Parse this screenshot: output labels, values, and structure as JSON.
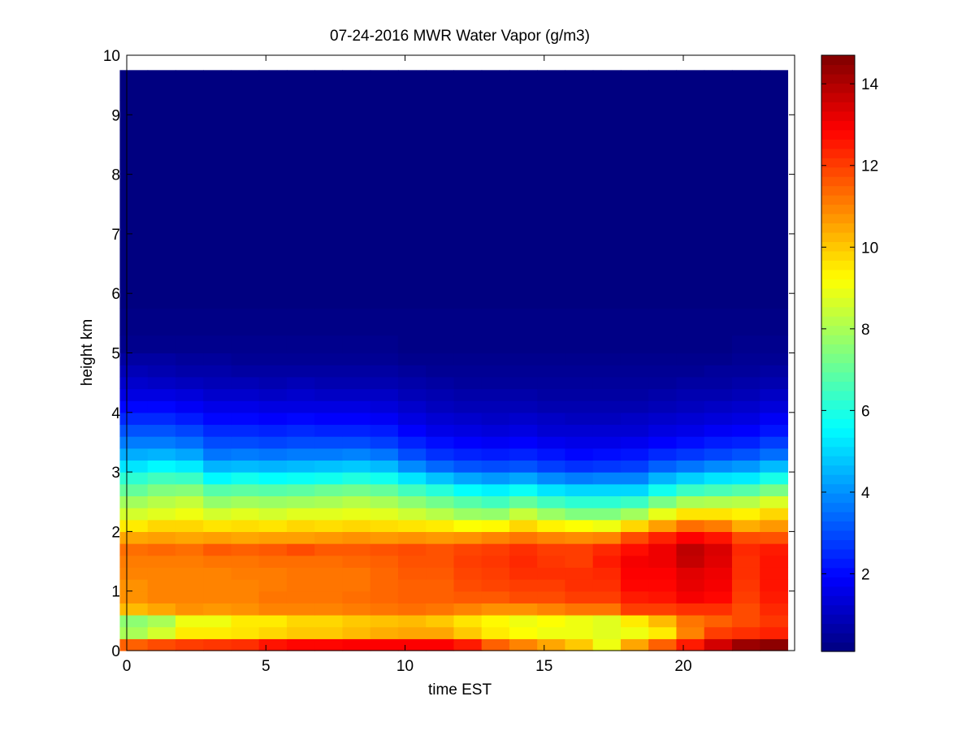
{
  "chart_data": {
    "type": "heatmap",
    "title": "07-24-2016 MWR Water Vapor (g/m3)",
    "xlabel": "time EST",
    "ylabel": "height km",
    "xlim": [
      0,
      24
    ],
    "ylim": [
      0,
      10
    ],
    "x_ticks": [
      "0",
      "5",
      "10",
      "15",
      "20"
    ],
    "y_ticks": [
      "0",
      "1",
      "2",
      "3",
      "4",
      "5",
      "6",
      "7",
      "8",
      "9",
      "10"
    ],
    "colorbar": {
      "colormap": "jet",
      "range": [
        0.1,
        14.7
      ],
      "ticks": [
        "2",
        "4",
        "6",
        "8",
        "10",
        "12",
        "14"
      ]
    },
    "x": [
      0.25,
      1.25,
      2.25,
      3.25,
      4.25,
      5.25,
      6.25,
      7.25,
      8.25,
      9.25,
      10.25,
      11.25,
      12.25,
      13.25,
      14.25,
      15.25,
      16.25,
      17.25,
      18.25,
      19.25,
      20.25,
      21.25,
      22.25,
      23.25
    ],
    "y": [
      0.1,
      0.3,
      0.5,
      0.7,
      0.9,
      1.1,
      1.3,
      1.5,
      1.7,
      1.9,
      2.1,
      2.3,
      2.5,
      2.7,
      2.9,
      3.1,
      3.3,
      3.5,
      3.7,
      3.9,
      4.1,
      4.3,
      4.5,
      4.7,
      4.9,
      5.1,
      5.5,
      6.0,
      6.5,
      7.0,
      7.5,
      8.0,
      8.5,
      9.0,
      9.5
    ],
    "values": [
      [
        11.5,
        11.8,
        12,
        12.1,
        12.2,
        12.6,
        12.8,
        12.8,
        12.9,
        12.9,
        12.9,
        12.9,
        12.5,
        11.5,
        11,
        10.5,
        10,
        9,
        10.5,
        11.5,
        12.5,
        13.5,
        14.3,
        14.5
      ],
      [
        8,
        8.6,
        9.5,
        9.5,
        9.6,
        9.8,
        10,
        10,
        10.2,
        10.4,
        10.5,
        10.5,
        10,
        9.5,
        9.2,
        9,
        9,
        8.8,
        9,
        9.5,
        11,
        12,
        12.2,
        12.4
      ],
      [
        7.6,
        8,
        9,
        9,
        9.5,
        9.5,
        9.8,
        9.8,
        10,
        10.1,
        10.2,
        10,
        9.6,
        9.3,
        9,
        9.2,
        9,
        8.8,
        9.5,
        10.2,
        11.2,
        11.5,
        11.8,
        12.1
      ],
      [
        10.2,
        10.5,
        10.8,
        10.7,
        10.8,
        11,
        11,
        11,
        11.1,
        11.2,
        11.3,
        11.2,
        11,
        10.8,
        10.8,
        11,
        11.2,
        11.2,
        12,
        12,
        12.2,
        12.2,
        11.8,
        12.3
      ],
      [
        10.8,
        11,
        11,
        11,
        11,
        11.2,
        11.2,
        11.2,
        11.3,
        11.4,
        11.5,
        11.5,
        11.6,
        11.6,
        11.8,
        11.8,
        12,
        12,
        12.5,
        12.6,
        13,
        12.8,
        12,
        12.5
      ],
      [
        10.8,
        11,
        11,
        11,
        11,
        11.1,
        11.2,
        11.2,
        11.2,
        11.4,
        11.5,
        11.5,
        11.8,
        11.9,
        12,
        12,
        12.2,
        12.2,
        12.8,
        12.8,
        13.2,
        13,
        12.1,
        12.6
      ],
      [
        11,
        11,
        11,
        11,
        11.1,
        11.1,
        11.2,
        11.2,
        11.2,
        11.4,
        11.6,
        11.6,
        11.9,
        12,
        12.2,
        12.2,
        12.2,
        12.3,
        12.9,
        12.9,
        13.3,
        13.1,
        12.2,
        12.6
      ],
      [
        11.1,
        11.1,
        11.1,
        11.2,
        11.2,
        11.3,
        11.3,
        11.3,
        11.4,
        11.5,
        11.7,
        11.7,
        12,
        12.1,
        12.3,
        12.1,
        12,
        12.5,
        13,
        13.1,
        13.7,
        13.3,
        12.2,
        12.6
      ],
      [
        11.3,
        11.4,
        11.3,
        11.6,
        11.5,
        11.6,
        11.8,
        11.6,
        11.6,
        11.7,
        11.8,
        11.7,
        11.9,
        12,
        12.2,
        12,
        12,
        12.3,
        12.7,
        13.1,
        13.8,
        13.4,
        12.3,
        12.5
      ],
      [
        10.5,
        10.6,
        10.5,
        10.6,
        10.5,
        10.6,
        10.6,
        10.7,
        10.8,
        10.7,
        10.8,
        10.7,
        10.8,
        11,
        11.2,
        11,
        10.9,
        11,
        11.8,
        12.4,
        12.9,
        12.6,
        11.8,
        11.7
      ],
      [
        9.5,
        9.8,
        9.8,
        9.6,
        9.7,
        9.6,
        9.8,
        9.7,
        9.8,
        9.7,
        9.6,
        9.5,
        9.2,
        9.3,
        9.8,
        9.4,
        9.2,
        9,
        9.8,
        10.6,
        11.3,
        11.1,
        10.4,
        10.7
      ],
      [
        8.6,
        8.8,
        9,
        8.6,
        8.8,
        8.6,
        8.8,
        8.8,
        8.9,
        8.8,
        8.5,
        8.2,
        7.8,
        7.7,
        8.4,
        7.8,
        7.4,
        7.4,
        7.9,
        8.9,
        9.6,
        9.6,
        9.4,
        9.8
      ],
      [
        7.9,
        8.2,
        8.4,
        7.7,
        7.9,
        7.8,
        7.9,
        8,
        8.2,
        8,
        7.6,
        7.2,
        6.8,
        6.5,
        7,
        6.5,
        6.2,
        6.2,
        6.4,
        7.3,
        8,
        8.1,
        8.2,
        8.7
      ],
      [
        7,
        7.4,
        7.5,
        6.8,
        6.9,
        6.8,
        6.9,
        7.1,
        7.2,
        7,
        6.5,
        6.1,
        5.6,
        5.4,
        5.7,
        5.2,
        5,
        5,
        5,
        5.8,
        6.4,
        6.6,
        6.8,
        7.3
      ],
      [
        6.2,
        6.5,
        6.4,
        5.5,
        5.8,
        5.6,
        5.7,
        5.8,
        6,
        5.8,
        5.2,
        4.7,
        4.3,
        4.1,
        4.3,
        3.9,
        3.7,
        3.8,
        3.8,
        4.5,
        4.9,
        5.2,
        5.3,
        5.9
      ],
      [
        5.2,
        5.5,
        5.3,
        4.5,
        4.6,
        4.5,
        4.6,
        4.7,
        4.8,
        4.6,
        3.9,
        3.4,
        3.1,
        3,
        3.1,
        2.8,
        2.6,
        2.7,
        2.8,
        3.3,
        3.6,
        3.9,
        4.1,
        4.6
      ],
      [
        4.4,
        4.5,
        4.3,
        3.6,
        3.7,
        3.6,
        3.7,
        3.7,
        3.8,
        3.6,
        3,
        2.6,
        2.4,
        2.3,
        2.4,
        2.2,
        2,
        2.1,
        2.2,
        2.5,
        2.7,
        2.9,
        3.1,
        3.5
      ],
      [
        3.7,
        3.7,
        3.5,
        3,
        3,
        2.9,
        3,
        3,
        3,
        2.8,
        2.4,
        2.1,
        1.9,
        1.8,
        1.9,
        1.7,
        1.6,
        1.6,
        1.7,
        1.9,
        2.1,
        2.3,
        2.4,
        2.8
      ],
      [
        3.1,
        3.1,
        2.9,
        2.5,
        2.5,
        2.4,
        2.5,
        2.4,
        2.4,
        2.3,
        1.9,
        1.6,
        1.5,
        1.4,
        1.5,
        1.3,
        1.3,
        1.3,
        1.3,
        1.5,
        1.6,
        1.8,
        1.9,
        2.2
      ],
      [
        2.5,
        2.5,
        2.3,
        2,
        2,
        1.9,
        2,
        1.9,
        1.9,
        1.8,
        1.5,
        1.3,
        1.2,
        1.1,
        1.2,
        1.1,
        1,
        1,
        1.1,
        1.2,
        1.3,
        1.4,
        1.5,
        1.8
      ],
      [
        2,
        2,
        1.8,
        1.6,
        1.6,
        1.5,
        1.5,
        1.5,
        1.5,
        1.4,
        1.2,
        1,
        0.9,
        0.9,
        0.9,
        0.8,
        0.8,
        0.8,
        0.8,
        0.9,
        1,
        1.1,
        1.2,
        1.4
      ],
      [
        1.5,
        1.5,
        1.4,
        1.2,
        1.2,
        1.1,
        1.2,
        1.1,
        1.1,
        1.1,
        0.9,
        0.8,
        0.7,
        0.7,
        0.7,
        0.6,
        0.6,
        0.6,
        0.6,
        0.7,
        0.8,
        0.8,
        0.9,
        1.1
      ],
      [
        1.2,
        1.1,
        1,
        0.9,
        0.9,
        0.8,
        0.9,
        0.8,
        0.8,
        0.8,
        0.7,
        0.6,
        0.5,
        0.5,
        0.5,
        0.5,
        0.5,
        0.5,
        0.5,
        0.5,
        0.6,
        0.6,
        0.7,
        0.8
      ],
      [
        0.9,
        0.8,
        0.7,
        0.7,
        0.6,
        0.6,
        0.6,
        0.6,
        0.6,
        0.6,
        0.5,
        0.4,
        0.4,
        0.4,
        0.4,
        0.4,
        0.4,
        0.4,
        0.4,
        0.4,
        0.4,
        0.5,
        0.5,
        0.6
      ],
      [
        0.6,
        0.6,
        0.5,
        0.5,
        0.4,
        0.4,
        0.4,
        0.4,
        0.4,
        0.4,
        0.3,
        0.3,
        0.3,
        0.3,
        0.3,
        0.3,
        0.3,
        0.3,
        0.3,
        0.3,
        0.3,
        0.3,
        0.4,
        0.4
      ],
      [
        0.3,
        0.3,
        0.3,
        0.3,
        0.3,
        0.3,
        0.3,
        0.3,
        0.3,
        0.3,
        0.2,
        0.2,
        0.2,
        0.2,
        0.2,
        0.2,
        0.2,
        0.2,
        0.2,
        0.2,
        0.2,
        0.2,
        0.3,
        0.3
      ],
      [
        0.2,
        0.2,
        0.2,
        0.2,
        0.2,
        0.2,
        0.2,
        0.2,
        0.2,
        0.2,
        0.2,
        0.2,
        0.2,
        0.2,
        0.2,
        0.2,
        0.2,
        0.2,
        0.2,
        0.2,
        0.2,
        0.2,
        0.2,
        0.2
      ],
      [
        0.1,
        0.1,
        0.1,
        0.1,
        0.1,
        0.1,
        0.1,
        0.1,
        0.1,
        0.1,
        0.1,
        0.1,
        0.1,
        0.1,
        0.1,
        0.1,
        0.1,
        0.1,
        0.1,
        0.1,
        0.1,
        0.1,
        0.1,
        0.1
      ],
      [
        0.1,
        0.1,
        0.1,
        0.1,
        0.1,
        0.1,
        0.1,
        0.1,
        0.1,
        0.1,
        0.1,
        0.1,
        0.1,
        0.1,
        0.1,
        0.1,
        0.1,
        0.1,
        0.1,
        0.1,
        0.1,
        0.1,
        0.1,
        0.1
      ],
      [
        0.1,
        0.1,
        0.1,
        0.1,
        0.1,
        0.1,
        0.1,
        0.1,
        0.1,
        0.1,
        0.1,
        0.1,
        0.1,
        0.1,
        0.1,
        0.1,
        0.1,
        0.1,
        0.1,
        0.1,
        0.1,
        0.1,
        0.1,
        0.1
      ],
      [
        0.1,
        0.1,
        0.1,
        0.1,
        0.1,
        0.1,
        0.1,
        0.1,
        0.1,
        0.1,
        0.1,
        0.1,
        0.1,
        0.1,
        0.1,
        0.1,
        0.1,
        0.1,
        0.1,
        0.1,
        0.1,
        0.1,
        0.1,
        0.1
      ],
      [
        0.1,
        0.1,
        0.1,
        0.1,
        0.1,
        0.1,
        0.1,
        0.1,
        0.1,
        0.1,
        0.1,
        0.1,
        0.1,
        0.1,
        0.1,
        0.1,
        0.1,
        0.1,
        0.1,
        0.1,
        0.1,
        0.1,
        0.1,
        0.1
      ],
      [
        0.1,
        0.1,
        0.1,
        0.1,
        0.1,
        0.1,
        0.1,
        0.1,
        0.1,
        0.1,
        0.1,
        0.1,
        0.1,
        0.1,
        0.1,
        0.1,
        0.1,
        0.1,
        0.1,
        0.1,
        0.1,
        0.1,
        0.1,
        0.1
      ],
      [
        0.1,
        0.1,
        0.1,
        0.1,
        0.1,
        0.1,
        0.1,
        0.1,
        0.1,
        0.1,
        0.1,
        0.1,
        0.1,
        0.1,
        0.1,
        0.1,
        0.1,
        0.1,
        0.1,
        0.1,
        0.1,
        0.1,
        0.1,
        0.1
      ],
      [
        0.1,
        0.1,
        0.1,
        0.1,
        0.1,
        0.1,
        0.1,
        0.1,
        0.1,
        0.1,
        0.1,
        0.1,
        0.1,
        0.1,
        0.1,
        0.1,
        0.1,
        0.1,
        0.1,
        0.1,
        0.1,
        0.1,
        0.1,
        0.1
      ]
    ]
  }
}
